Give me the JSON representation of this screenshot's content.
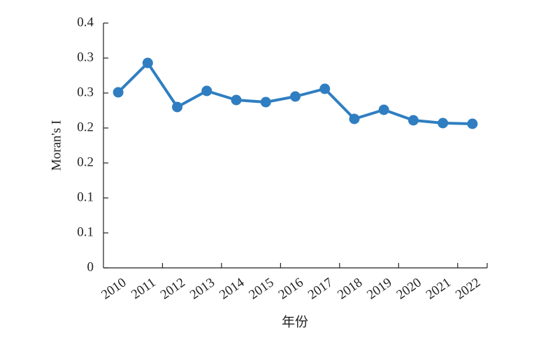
{
  "chart_data": {
    "type": "line",
    "categories": [
      "2010",
      "2011",
      "2012",
      "2013",
      "2014",
      "2015",
      "2016",
      "2017",
      "2018",
      "2019",
      "2020",
      "2021",
      "2022"
    ],
    "series": [
      {
        "name": "Moran's I",
        "color": "#2f7ec1",
        "values": [
          0.251,
          0.293,
          0.23,
          0.253,
          0.24,
          0.237,
          0.245,
          0.256,
          0.213,
          0.226,
          0.211,
          0.207,
          0.206
        ]
      }
    ],
    "ylabel": "Moran's I",
    "xlabel": "年份",
    "ylim": [
      0,
      0.35
    ],
    "yticks": [
      0,
      {
        "value": 0.05,
        "label": "0.1"
      },
      0.1,
      {
        "value": 0.15,
        "label": "0.2"
      },
      0.2,
      {
        "value": 0.25,
        "label": "0.3"
      },
      0.3,
      {
        "value": 0.35,
        "label": "0.4"
      }
    ]
  }
}
